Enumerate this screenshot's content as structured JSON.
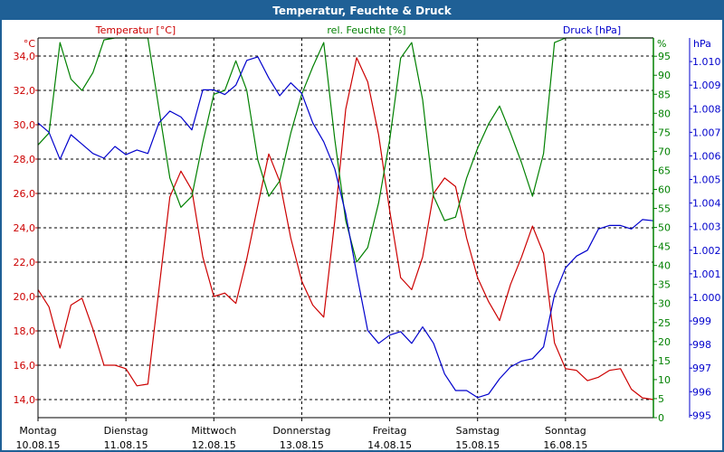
{
  "window": {
    "title": "Temperatur, Feuchte & Druck"
  },
  "chart_data": {
    "type": "line",
    "title": "Temperatur, Feuchte & Druck",
    "grid": true,
    "x": [
      "10.08.15 00:00",
      "10.08.15 03:00",
      "10.08.15 06:00",
      "10.08.15 09:00",
      "10.08.15 12:00",
      "10.08.15 15:00",
      "10.08.15 18:00",
      "10.08.15 21:00",
      "11.08.15 00:00",
      "11.08.15 03:00",
      "11.08.15 06:00",
      "11.08.15 09:00",
      "11.08.15 12:00",
      "11.08.15 15:00",
      "11.08.15 18:00",
      "11.08.15 21:00",
      "12.08.15 00:00",
      "12.08.15 03:00",
      "12.08.15 06:00",
      "12.08.15 09:00",
      "12.08.15 12:00",
      "12.08.15 15:00",
      "12.08.15 18:00",
      "12.08.15 21:00",
      "13.08.15 00:00",
      "13.08.15 03:00",
      "13.08.15 06:00",
      "13.08.15 09:00",
      "13.08.15 12:00",
      "13.08.15 15:00",
      "13.08.15 18:00",
      "13.08.15 21:00",
      "14.08.15 00:00",
      "14.08.15 03:00",
      "14.08.15 06:00",
      "14.08.15 09:00",
      "14.08.15 12:00",
      "14.08.15 15:00",
      "14.08.15 18:00",
      "14.08.15 21:00",
      "15.08.15 00:00",
      "15.08.15 03:00",
      "15.08.15 06:00",
      "15.08.15 09:00",
      "15.08.15 12:00",
      "15.08.15 15:00",
      "15.08.15 18:00",
      "15.08.15 21:00",
      "16.08.15 00:00",
      "16.08.15 03:00",
      "16.08.15 06:00",
      "16.08.15 09:00",
      "16.08.15 12:00",
      "16.08.15 15:00",
      "16.08.15 18:00",
      "16.08.15 21:00",
      "17.08.15 00:00"
    ],
    "x_ticks": [
      {
        "day": "Montag",
        "date": "10.08.15"
      },
      {
        "day": "Dienstag",
        "date": "11.08.15"
      },
      {
        "day": "Mittwoch",
        "date": "12.08.15"
      },
      {
        "day": "Donnerstag",
        "date": "13.08.15"
      },
      {
        "day": "Freitag",
        "date": "14.08.15"
      },
      {
        "day": "Samstag",
        "date": "15.08.15"
      },
      {
        "day": "Sonntag",
        "date": "16.08.15"
      }
    ],
    "axes": {
      "temperature": {
        "label": "Temperatur [°C]",
        "unit": "°C",
        "range": [
          12.95,
          35.05
        ],
        "ticks": [
          "14,0",
          "16,0",
          "18,0",
          "20,0",
          "22,0",
          "24,0",
          "26,0",
          "28,0",
          "30,0",
          "32,0",
          "34,0"
        ],
        "tick_values": [
          14,
          16,
          18,
          20,
          22,
          24,
          26,
          28,
          30,
          32,
          34
        ],
        "color": "#cc0000",
        "position": "left"
      },
      "humidity": {
        "label": "rel. Feuchte [%]",
        "unit": "%",
        "range": [
          0,
          99.8
        ],
        "ticks": [
          "0",
          "5",
          "10",
          "15",
          "20",
          "25",
          "30",
          "35",
          "40",
          "45",
          "50",
          "55",
          "60",
          "65",
          "70",
          "75",
          "80",
          "85",
          "90",
          "95"
        ],
        "tick_values": [
          0,
          5,
          10,
          15,
          20,
          25,
          30,
          35,
          40,
          45,
          50,
          55,
          60,
          65,
          70,
          75,
          80,
          85,
          90,
          95
        ],
        "color": "#008000",
        "position": "right"
      },
      "pressure": {
        "label": "Druck [hPa]",
        "unit": "hPa",
        "range": [
          994.9,
          1011.0
        ],
        "ticks": [
          "995",
          "996",
          "997",
          "998",
          "999",
          "1.000",
          "1.001",
          "1.002",
          "1.003",
          "1.004",
          "1.005",
          "1.006",
          "1.007",
          "1.008",
          "1.009",
          "1.010"
        ],
        "tick_values": [
          995,
          996,
          997,
          998,
          999,
          1000,
          1001,
          1002,
          1003,
          1004,
          1005,
          1006,
          1007,
          1008,
          1009,
          1010
        ],
        "color": "#0000cc",
        "position": "right-outer"
      }
    },
    "series": [
      {
        "name": "Temperatur [°C]",
        "axis": "temperature",
        "color": "#cc0000",
        "values": [
          20.4,
          19.4,
          17.0,
          19.5,
          19.9,
          18.1,
          16.0,
          16.0,
          15.8,
          14.8,
          14.9,
          20.4,
          25.8,
          27.3,
          26.2,
          22.3,
          20.0,
          20.2,
          19.6,
          22.2,
          25.3,
          28.3,
          26.7,
          23.4,
          20.9,
          19.5,
          18.8,
          24.4,
          30.9,
          33.9,
          32.5,
          29.4,
          25.0,
          21.1,
          20.4,
          22.3,
          26.0,
          26.9,
          26.4,
          23.4,
          21.1,
          19.7,
          18.6,
          20.7,
          22.3,
          24.1,
          22.5,
          17.3,
          15.8,
          15.7,
          15.1,
          15.3,
          15.7,
          15.8,
          14.6,
          14.1,
          14.0
        ]
      },
      {
        "name": "rel. Feuchte [%]",
        "axis": "humidity",
        "color": "#008000",
        "values": [
          71.7,
          74.8,
          98.6,
          89,
          86,
          90.7,
          99.3,
          100,
          100,
          100,
          100,
          81.2,
          63,
          55.3,
          58.2,
          72.4,
          85,
          86,
          93.8,
          86,
          67.7,
          58.2,
          62.2,
          74.8,
          85,
          92.2,
          98.6,
          73.2,
          51.8,
          40.9,
          44.7,
          56.5,
          73,
          94.5,
          98.6,
          83.6,
          58.2,
          51.8,
          52.7,
          63,
          70.8,
          77.2,
          81.9,
          74.8,
          67,
          58.2,
          69.4,
          98.6,
          100,
          100,
          100,
          100,
          100,
          100,
          100,
          100,
          100
        ]
      },
      {
        "name": "Druck [hPa]",
        "axis": "pressure",
        "color": "#0000cc",
        "values": [
          1007.4,
          1007.0,
          1005.85,
          1006.9,
          1006.5,
          1006.1,
          1005.9,
          1006.4,
          1006.05,
          1006.25,
          1006.1,
          1007.4,
          1007.9,
          1007.65,
          1007.1,
          1008.8,
          1008.8,
          1008.6,
          1009.0,
          1010.05,
          1010.2,
          1009.3,
          1008.55,
          1009.1,
          1008.65,
          1007.4,
          1006.6,
          1005.45,
          1003.55,
          1001.0,
          998.6,
          998.05,
          998.4,
          998.55,
          998.05,
          998.75,
          998.05,
          996.75,
          996.05,
          996.05,
          995.75,
          995.9,
          996.55,
          997.05,
          997.3,
          997.4,
          997.9,
          1000.1,
          1001.25,
          1001.75,
          1002.0,
          1002.9,
          1003.05,
          1003.05,
          1002.9,
          1003.3,
          1003.25
        ]
      }
    ]
  }
}
